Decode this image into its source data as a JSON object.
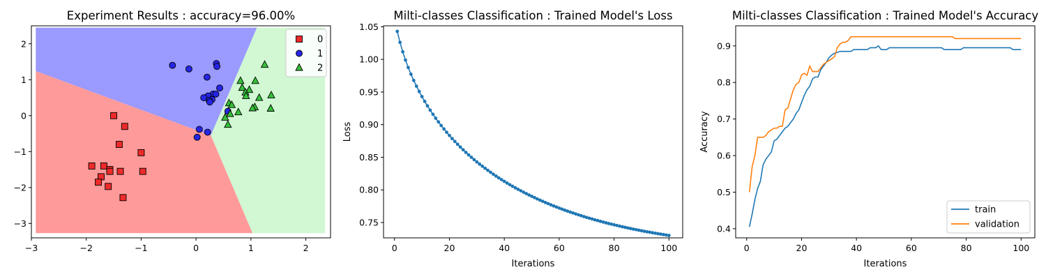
{
  "chart_data": [
    {
      "type": "scatter",
      "title": "Experiment Results : accuracy=96.00%",
      "xlabel": "",
      "ylabel": "",
      "xlim": [
        -3,
        2.45
      ],
      "ylim": [
        -3.4,
        2.5
      ],
      "xticks": [
        -3,
        -2,
        -1,
        0,
        1,
        2
      ],
      "yticks": [
        -3,
        -2,
        -1,
        0,
        1,
        2
      ],
      "legend_position": "top-right",
      "decision_regions": {
        "colors": {
          "0": "#ff9a9a",
          "1": "#9a9aff",
          "2": "#d1f8d3"
        },
        "junction": [
          0.27,
          -0.55
        ],
        "boundary_01_end": [
          -2.92,
          1.24
        ],
        "boundary_12_end": [
          1.11,
          2.45
        ],
        "boundary_02_end": [
          1.03,
          -3.27
        ],
        "extent": {
          "x": [
            -2.92,
            2.35
          ],
          "y": [
            -3.27,
            2.45
          ]
        }
      },
      "series": [
        {
          "name": "0",
          "marker": "square",
          "color": "#ee2a2a",
          "points": [
            [
              -1.5,
              0.0
            ],
            [
              -1.3,
              -0.3
            ],
            [
              -1.4,
              -0.8
            ],
            [
              -1.0,
              -1.03
            ],
            [
              -1.9,
              -1.4
            ],
            [
              -1.68,
              -1.4
            ],
            [
              -1.57,
              -1.5
            ],
            [
              -1.57,
              -1.55
            ],
            [
              -1.38,
              -1.55
            ],
            [
              -0.97,
              -1.55
            ],
            [
              -1.73,
              -1.7
            ],
            [
              -1.78,
              -1.85
            ],
            [
              -1.6,
              -1.97
            ],
            [
              -1.33,
              -2.28
            ]
          ]
        },
        {
          "name": "1",
          "marker": "circle",
          "color": "#2525e6",
          "points": [
            [
              -0.43,
              1.4
            ],
            [
              -0.13,
              1.3
            ],
            [
              0.37,
              1.45
            ],
            [
              0.38,
              1.37
            ],
            [
              0.2,
              1.07
            ],
            [
              0.43,
              0.77
            ],
            [
              0.31,
              0.6
            ],
            [
              0.36,
              0.6
            ],
            [
              0.22,
              0.55
            ],
            [
              0.14,
              0.5
            ],
            [
              0.29,
              0.45
            ],
            [
              0.24,
              0.42
            ],
            [
              0.25,
              0.38
            ],
            [
              0.58,
              0.12
            ],
            [
              0.06,
              -0.38
            ],
            [
              0.21,
              -0.46
            ],
            [
              0.02,
              -0.6
            ]
          ]
        },
        {
          "name": "2",
          "marker": "triangle",
          "color": "#36c03a",
          "points": [
            [
              1.25,
              1.42
            ],
            [
              1.08,
              0.97
            ],
            [
              0.81,
              0.97
            ],
            [
              0.84,
              0.78
            ],
            [
              0.97,
              0.72
            ],
            [
              0.9,
              0.65
            ],
            [
              1.37,
              0.57
            ],
            [
              1.15,
              0.5
            ],
            [
              0.91,
              0.55
            ],
            [
              0.6,
              0.35
            ],
            [
              0.65,
              0.3
            ],
            [
              1.07,
              0.24
            ],
            [
              1.03,
              0.21
            ],
            [
              1.36,
              0.2
            ],
            [
              0.77,
              0.1
            ],
            [
              0.62,
              0.05
            ],
            [
              0.53,
              -0.05
            ],
            [
              0.58,
              -0.25
            ]
          ]
        }
      ]
    },
    {
      "type": "line",
      "title": "Milti-classes Classification : Trained Model's Loss",
      "xlabel": "Iterations",
      "ylabel": "Loss",
      "xlim": [
        -4,
        105
      ],
      "ylim": [
        0.7265,
        1.0515
      ],
      "xticks": [
        0,
        20,
        40,
        60,
        80,
        100
      ],
      "yticks": [
        0.75,
        0.8,
        0.85,
        0.9,
        0.95,
        1.0,
        1.05
      ],
      "ytick_labels": [
        "0.75",
        "0.80",
        "0.85",
        "0.90",
        "0.95",
        "1.00",
        "1.05"
      ],
      "markers": true,
      "color": "#1f77b4",
      "x_start": 1,
      "x_step": 1,
      "values": [
        1.043,
        1.0261,
        1.0117,
        0.999,
        0.9876,
        0.9773,
        0.9678,
        0.959,
        0.9508,
        0.943,
        0.9357,
        0.9288,
        0.9222,
        0.9159,
        0.9099,
        0.9042,
        0.8987,
        0.8934,
        0.8883,
        0.8834,
        0.8787,
        0.8742,
        0.8698,
        0.8656,
        0.8615,
        0.8575,
        0.8537,
        0.85,
        0.8464,
        0.8429,
        0.8395,
        0.8363,
        0.8331,
        0.83,
        0.827,
        0.824,
        0.8212,
        0.8184,
        0.8157,
        0.8131,
        0.8105,
        0.808,
        0.8056,
        0.8032,
        0.8009,
        0.7987,
        0.7965,
        0.7943,
        0.7922,
        0.7902,
        0.7882,
        0.7862,
        0.7843,
        0.7825,
        0.7806,
        0.7789,
        0.7771,
        0.7754,
        0.7738,
        0.7721,
        0.7706,
        0.769,
        0.7675,
        0.766,
        0.7646,
        0.7632,
        0.7618,
        0.7605,
        0.7591,
        0.7578,
        0.7566,
        0.7554,
        0.7541,
        0.753,
        0.7518,
        0.7507,
        0.7496,
        0.7485,
        0.7475,
        0.7465,
        0.7455,
        0.7445,
        0.7435,
        0.7426,
        0.7417,
        0.7408,
        0.7399,
        0.7391,
        0.7382,
        0.7374,
        0.7366,
        0.7358,
        0.7351,
        0.7343,
        0.7336,
        0.7329,
        0.7322,
        0.7315,
        0.7308,
        0.7302
      ]
    },
    {
      "type": "line",
      "title": "Milti-classes Classification : Trained Model's Accuracy",
      "xlabel": "Iterations",
      "ylabel": "Accuracy",
      "xlim": [
        -4,
        105
      ],
      "ylim": [
        0.375,
        0.955
      ],
      "xticks": [
        0,
        20,
        40,
        60,
        80,
        100
      ],
      "yticks": [
        0.4,
        0.5,
        0.6,
        0.7,
        0.8,
        0.9
      ],
      "ytick_labels": [
        "0.4",
        "0.5",
        "0.6",
        "0.7",
        "0.8",
        "0.9"
      ],
      "legend_position": "bottom-right",
      "x_start": 1,
      "x_step": 1,
      "series": [
        {
          "name": "train",
          "color": "#1f77b4",
          "values": [
            0.405,
            0.44,
            0.48,
            0.51,
            0.53,
            0.575,
            0.59,
            0.6,
            0.61,
            0.64,
            0.645,
            0.655,
            0.665,
            0.675,
            0.68,
            0.69,
            0.7,
            0.715,
            0.725,
            0.745,
            0.765,
            0.78,
            0.79,
            0.81,
            0.815,
            0.815,
            0.835,
            0.845,
            0.855,
            0.868,
            0.875,
            0.88,
            0.882,
            0.885,
            0.885,
            0.885,
            0.885,
            0.885,
            0.89,
            0.89,
            0.89,
            0.89,
            0.89,
            0.89,
            0.895,
            0.895,
            0.895,
            0.9,
            0.89,
            0.89,
            0.89,
            0.895,
            0.895,
            0.895,
            0.895,
            0.895,
            0.895,
            0.895,
            0.895,
            0.895,
            0.895,
            0.895,
            0.895,
            0.895,
            0.895,
            0.895,
            0.895,
            0.895,
            0.895,
            0.895,
            0.895,
            0.89,
            0.89,
            0.89,
            0.89,
            0.89,
            0.89,
            0.89,
            0.895,
            0.895,
            0.895,
            0.895,
            0.895,
            0.895,
            0.895,
            0.895,
            0.895,
            0.895,
            0.895,
            0.895,
            0.895,
            0.895,
            0.895,
            0.895,
            0.895,
            0.895,
            0.89,
            0.89,
            0.89,
            0.89
          ]
        },
        {
          "name": "validation",
          "color": "#ff7f0e",
          "values": [
            0.5,
            0.57,
            0.6,
            0.65,
            0.65,
            0.65,
            0.655,
            0.665,
            0.67,
            0.675,
            0.675,
            0.68,
            0.68,
            0.725,
            0.73,
            0.755,
            0.78,
            0.795,
            0.8,
            0.82,
            0.825,
            0.82,
            0.845,
            0.83,
            0.83,
            0.83,
            0.84,
            0.85,
            0.855,
            0.86,
            0.865,
            0.87,
            0.895,
            0.905,
            0.91,
            0.91,
            0.915,
            0.925,
            0.925,
            0.925,
            0.925,
            0.925,
            0.925,
            0.925,
            0.925,
            0.925,
            0.925,
            0.925,
            0.925,
            0.925,
            0.925,
            0.925,
            0.925,
            0.925,
            0.925,
            0.925,
            0.925,
            0.925,
            0.925,
            0.925,
            0.925,
            0.925,
            0.925,
            0.925,
            0.925,
            0.925,
            0.925,
            0.925,
            0.925,
            0.925,
            0.925,
            0.925,
            0.925,
            0.925,
            0.925,
            0.92,
            0.92,
            0.92,
            0.92,
            0.92,
            0.92,
            0.92,
            0.92,
            0.92,
            0.92,
            0.92,
            0.92,
            0.92,
            0.92,
            0.92,
            0.92,
            0.92,
            0.92,
            0.92,
            0.92,
            0.92,
            0.92,
            0.92,
            0.92,
            0.92
          ]
        }
      ]
    }
  ]
}
